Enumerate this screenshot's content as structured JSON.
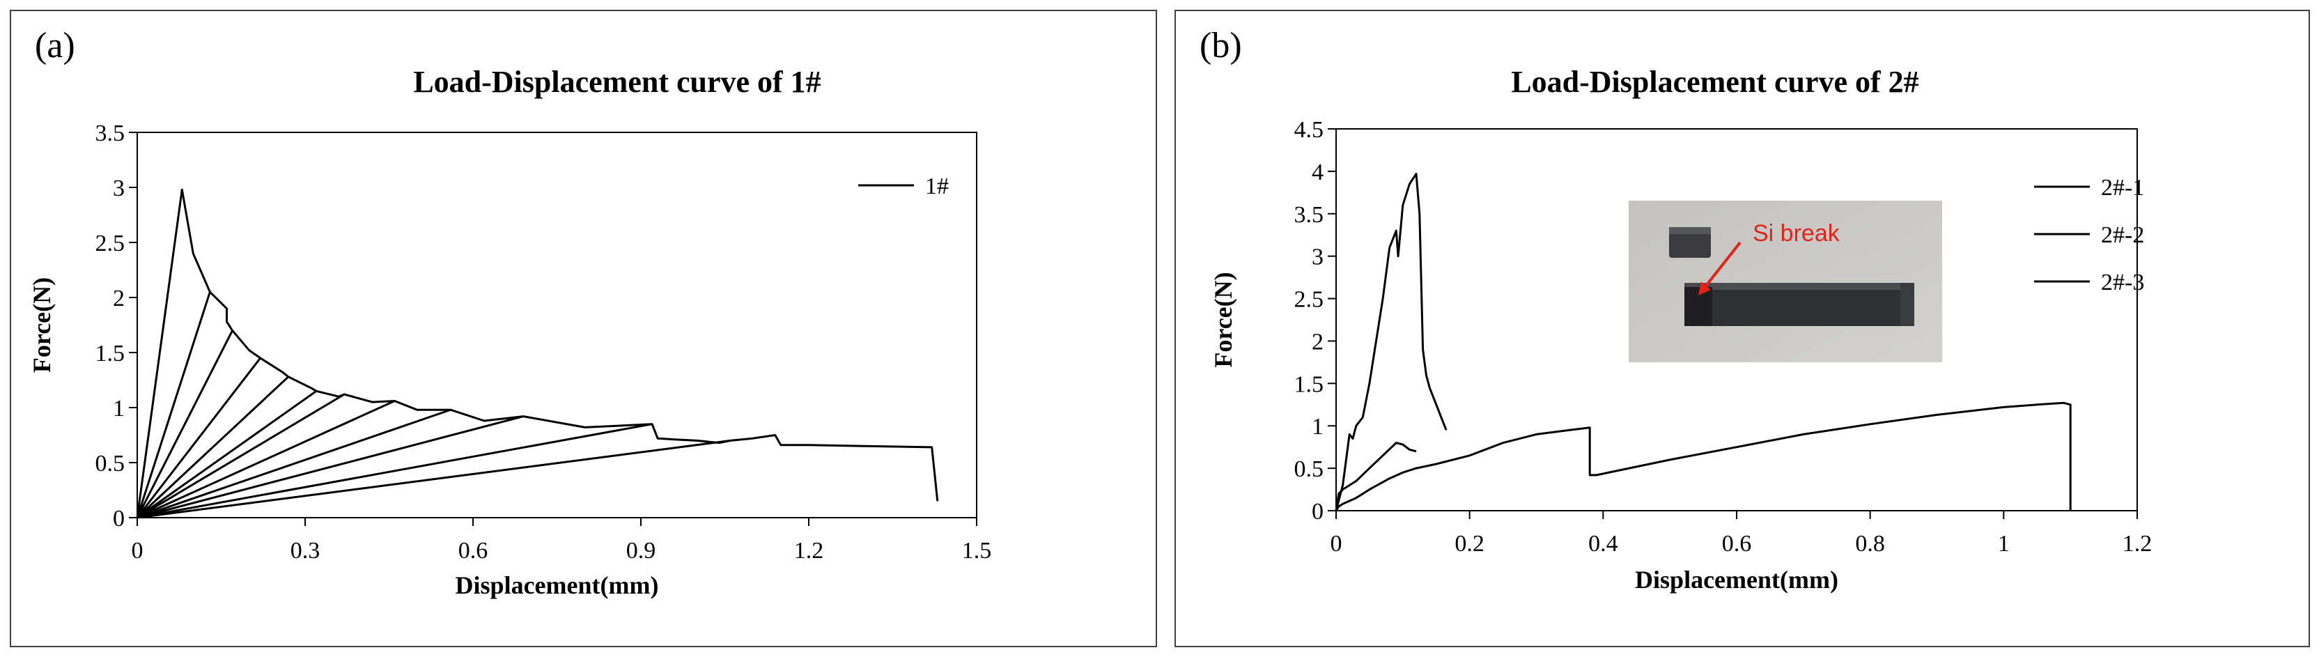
{
  "panels": {
    "a": {
      "label": "(a)"
    },
    "b": {
      "label": "(b)"
    }
  },
  "inset": {
    "annotation": "Si break"
  },
  "colors": {
    "line": "#000000",
    "annotation": "#e2231a",
    "frame": "#404040"
  },
  "chart_data": [
    {
      "type": "line",
      "title": "Load-Displacement curve of 1#",
      "xlabel": "Displacement(mm)",
      "ylabel": "Force(N)",
      "xlim": [
        0,
        1.5
      ],
      "ylim": [
        0,
        3.5
      ],
      "xticks": [
        "0",
        "0.3",
        "0.6",
        "0.9",
        "1.2",
        "1.5"
      ],
      "yticks": [
        "0",
        "0.5",
        "1",
        "1.5",
        "2",
        "2.5",
        "3",
        "3.5"
      ],
      "grid": false,
      "legend_position": "top-right",
      "series": [
        {
          "name": "1#",
          "x": [
            0,
            0.08,
            0,
            0.08,
            0.1,
            0.13,
            0,
            0.13,
            0.16,
            0.16,
            0.17,
            0,
            0.17,
            0.2,
            0.22,
            0,
            0.22,
            0.26,
            0.27,
            0,
            0.27,
            0.31,
            0.32,
            0,
            0.32,
            0.36,
            0.37,
            0,
            0.37,
            0.42,
            0.46,
            0,
            0.46,
            0.5,
            0.56,
            0,
            0.56,
            0.62,
            0.69,
            0,
            0.69,
            0.8,
            0.92,
            0,
            0.92,
            0.93,
            0.96,
            1.0,
            1.04,
            1.06,
            0,
            1.06,
            1.1,
            1.14,
            1.15,
            1.2,
            1.3,
            1.42,
            1.43,
            1.43
          ],
          "y": [
            0,
            2.98,
            0,
            2.98,
            2.4,
            2.05,
            0,
            2.05,
            1.9,
            1.78,
            1.7,
            0,
            1.7,
            1.52,
            1.45,
            0,
            1.45,
            1.32,
            1.28,
            0,
            1.28,
            1.18,
            1.15,
            0,
            1.15,
            1.1,
            1.12,
            0,
            1.12,
            1.05,
            1.06,
            0,
            1.06,
            0.98,
            0.98,
            0,
            0.98,
            0.88,
            0.92,
            0,
            0.92,
            0.82,
            0.85,
            0,
            0.85,
            0.72,
            0.71,
            0.7,
            0.68,
            0.7,
            0,
            0.7,
            0.72,
            0.75,
            0.66,
            0.66,
            0.65,
            0.64,
            0.15,
            0.15
          ]
        }
      ]
    },
    {
      "type": "line",
      "title": "Load-Displacement curve of 2#",
      "xlabel": "Displacement(mm)",
      "ylabel": "Force(N)",
      "xlim": [
        0,
        1.2
      ],
      "ylim": [
        0,
        4.5
      ],
      "xticks": [
        "0",
        "0.2",
        "0.4",
        "0.6",
        "0.8",
        "1",
        "1.2"
      ],
      "yticks": [
        "0",
        "0.5",
        "1",
        "1.5",
        "2",
        "2.5",
        "3",
        "3.5",
        "4",
        "4.5"
      ],
      "grid": false,
      "legend_position": "top-right",
      "series": [
        {
          "name": "2#-1",
          "x": [
            0,
            0.005,
            0.01,
            0.015,
            0.02,
            0.025,
            0.03,
            0.04,
            0.05,
            0.06,
            0.07,
            0.08,
            0.09,
            0.093,
            0.097,
            0.1,
            0.11,
            0.12,
            0.125,
            0.13,
            0.135,
            0.14,
            0.15,
            0.16,
            0.165
          ],
          "y": [
            0,
            0.15,
            0.3,
            0.6,
            0.9,
            0.85,
            1.0,
            1.1,
            1.5,
            2.0,
            2.5,
            3.1,
            3.3,
            3.0,
            3.35,
            3.6,
            3.85,
            3.97,
            3.5,
            1.9,
            1.6,
            1.45,
            1.25,
            1.05,
            0.95
          ]
        },
        {
          "name": "2#-2",
          "x": [
            0,
            0.004,
            0.01,
            0.03,
            0.05,
            0.07,
            0.09,
            0.1,
            0.11,
            0.12
          ],
          "y": [
            0,
            0.2,
            0.25,
            0.35,
            0.5,
            0.65,
            0.8,
            0.78,
            0.72,
            0.7
          ]
        },
        {
          "name": "2#-3",
          "x": [
            0,
            0.004,
            0.01,
            0.03,
            0.05,
            0.08,
            0.1,
            0.12,
            0.15,
            0.2,
            0.25,
            0.3,
            0.35,
            0.38,
            0.38,
            0.39,
            0.5,
            0.6,
            0.7,
            0.8,
            0.9,
            1.0,
            1.05,
            1.09,
            1.1,
            1.1
          ],
          "y": [
            0,
            0.05,
            0.08,
            0.15,
            0.25,
            0.38,
            0.45,
            0.5,
            0.55,
            0.65,
            0.8,
            0.9,
            0.95,
            0.98,
            0.42,
            0.42,
            0.6,
            0.75,
            0.9,
            1.02,
            1.13,
            1.22,
            1.25,
            1.27,
            1.25,
            0
          ]
        }
      ]
    }
  ]
}
